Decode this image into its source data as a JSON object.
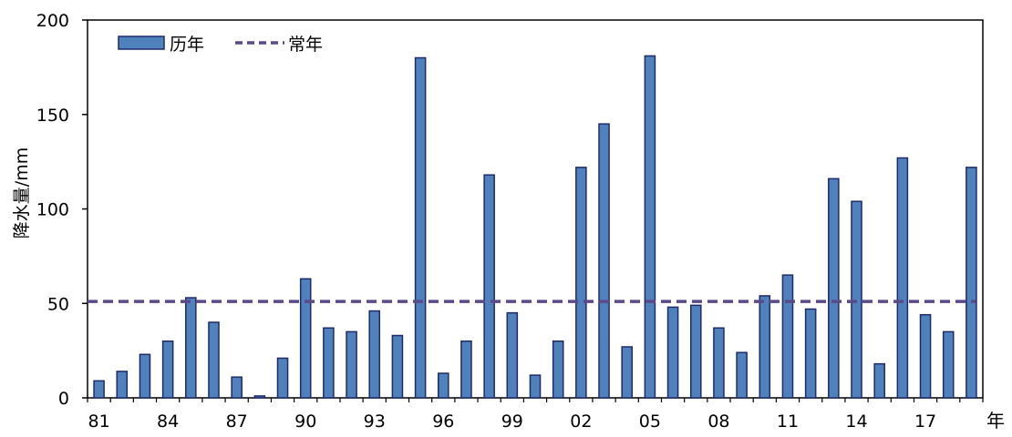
{
  "chart_data": {
    "type": "bar",
    "ylabel": "降水量/mm",
    "x_unit_label": "年",
    "ylim": [
      0,
      200
    ],
    "yticks": [
      0,
      50,
      100,
      150,
      200
    ],
    "grid": false,
    "legend_position": "top-left",
    "x_tick_labels": [
      "81",
      "84",
      "87",
      "90",
      "93",
      "96",
      "99",
      "02",
      "05",
      "08",
      "11",
      "14",
      "17"
    ],
    "categories": [
      "81",
      "82",
      "83",
      "84",
      "85",
      "86",
      "87",
      "88",
      "89",
      "90",
      "91",
      "92",
      "93",
      "94",
      "95",
      "96",
      "97",
      "98",
      "99",
      "00",
      "01",
      "02",
      "03",
      "04",
      "05",
      "06",
      "07",
      "08",
      "09",
      "10",
      "11",
      "12",
      "13",
      "14",
      "15",
      "16",
      "17",
      "18",
      "19"
    ],
    "series": [
      {
        "name": "历年",
        "kind": "bar",
        "color": "#4f81bd",
        "border_color": "#1f2a6b",
        "values": [
          9,
          14,
          23,
          30,
          53,
          40,
          11,
          1,
          21,
          63,
          37,
          35,
          46,
          33,
          180,
          13,
          30,
          118,
          45,
          12,
          30,
          122,
          145,
          27,
          181,
          48,
          49,
          37,
          24,
          54,
          65,
          47,
          116,
          104,
          18,
          127,
          44,
          35,
          122
        ]
      },
      {
        "name": "常年",
        "kind": "line",
        "style": "dashed",
        "color": "#5b4a8a",
        "value": 51
      }
    ]
  }
}
